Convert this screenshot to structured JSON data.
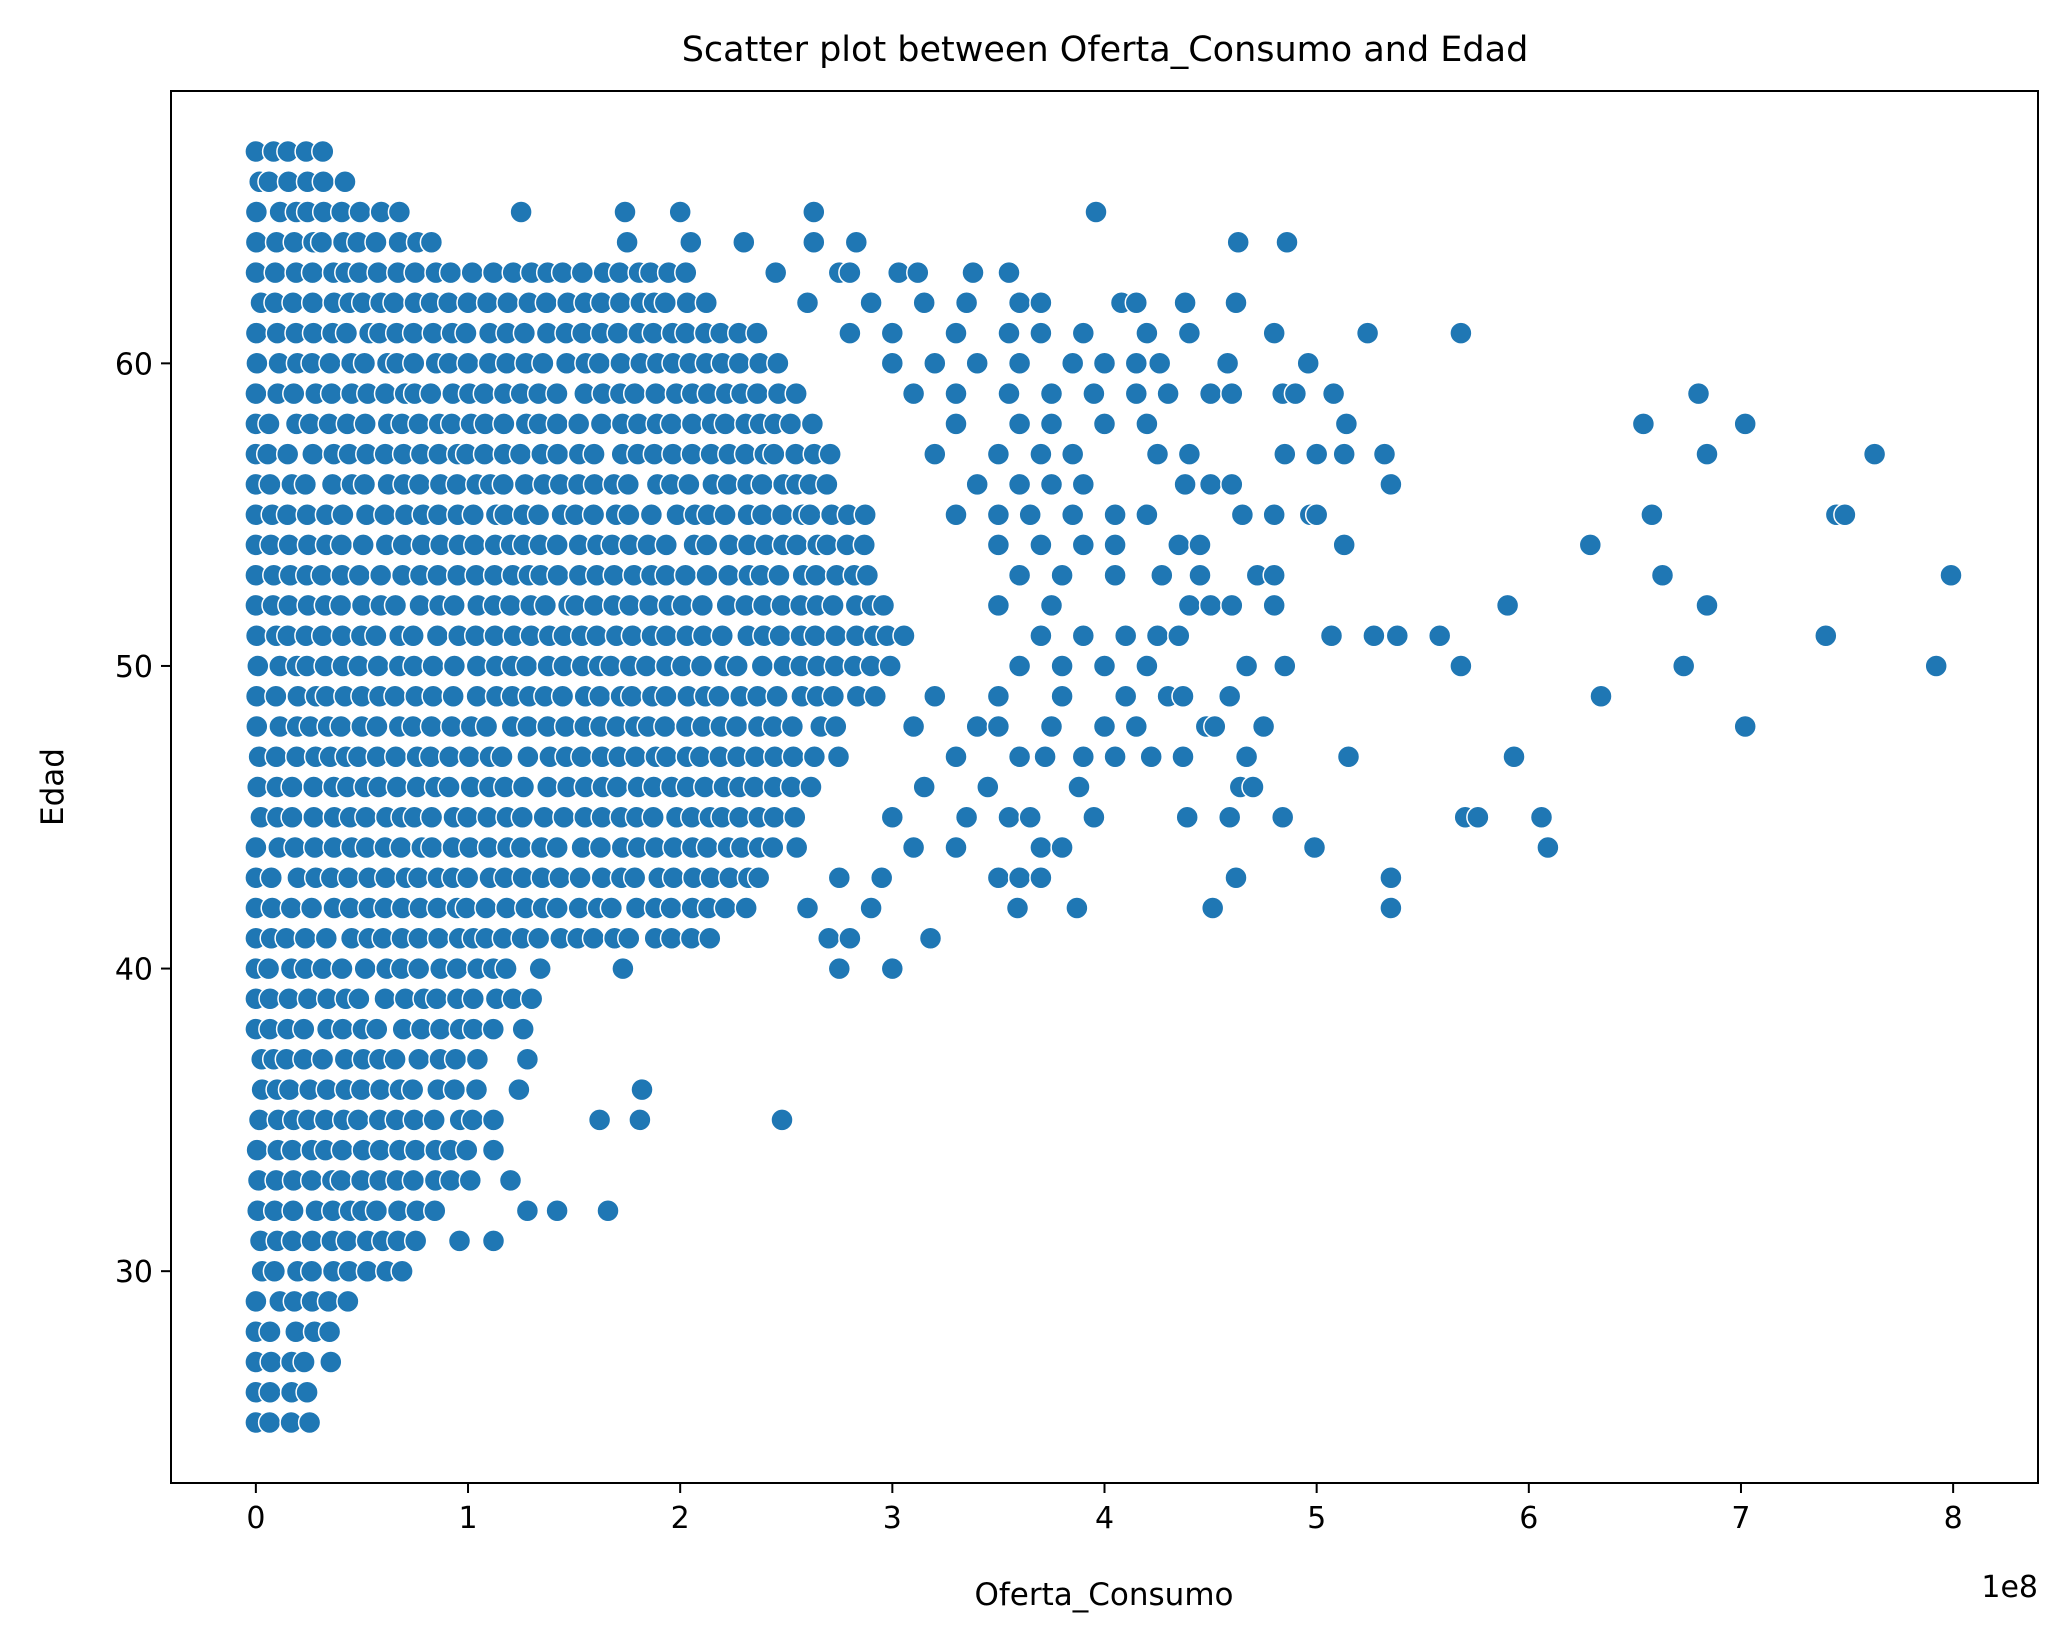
{
  "chart_data": {
    "type": "scatter",
    "title": "Scatter plot between Oferta_Consumo and Edad",
    "xlabel": "Oferta_Consumo",
    "ylabel": "Edad",
    "x_offset_label": "1e8",
    "xlim": [
      -0.4,
      8.4
    ],
    "ylim": [
      23.0,
      69.0
    ],
    "x_ticks": [
      0,
      1,
      2,
      3,
      4,
      5,
      6,
      7,
      8
    ],
    "x_tick_labels": [
      "0",
      "1",
      "2",
      "3",
      "4",
      "5",
      "6",
      "7",
      "8"
    ],
    "y_ticks": [
      30,
      40,
      50,
      60
    ],
    "y_tick_labels": [
      "30",
      "40",
      "50",
      "60"
    ],
    "x_unit_scale": 100000000,
    "grid": false,
    "legend": "none",
    "marker_color": "#1f77b4",
    "marker_edge_color": "#ffffff",
    "dense_band_max_x": [
      {
        "age": 25,
        "max_x": 0.3
      },
      {
        "age": 26,
        "max_x": 0.3
      },
      {
        "age": 27,
        "max_x": 0.34
      },
      {
        "age": 28,
        "max_x": 0.4
      },
      {
        "age": 29,
        "max_x": 0.5
      },
      {
        "age": 30,
        "max_x": 0.72
      },
      {
        "age": 31,
        "max_x": 0.78
      },
      {
        "age": 32,
        "max_x": 0.86
      },
      {
        "age": 33,
        "max_x": 1.02
      },
      {
        "age": 34,
        "max_x": 1.1
      },
      {
        "age": 35,
        "max_x": 1.18
      },
      {
        "age": 36,
        "max_x": 1.06
      },
      {
        "age": 37,
        "max_x": 1.08
      },
      {
        "age": 38,
        "max_x": 1.12
      },
      {
        "age": 39,
        "max_x": 1.22
      },
      {
        "age": 40,
        "max_x": 1.2
      },
      {
        "age": 41,
        "max_x": 2.2
      },
      {
        "age": 42,
        "max_x": 2.3
      },
      {
        "age": 43,
        "max_x": 2.4
      },
      {
        "age": 44,
        "max_x": 2.55
      },
      {
        "age": 45,
        "max_x": 2.6
      },
      {
        "age": 46,
        "max_x": 2.7
      },
      {
        "age": 47,
        "max_x": 2.8
      },
      {
        "age": 48,
        "max_x": 2.8
      },
      {
        "age": 49,
        "max_x": 2.9
      },
      {
        "age": 50,
        "max_x": 3.0
      },
      {
        "age": 51,
        "max_x": 3.1
      },
      {
        "age": 52,
        "max_x": 3.0
      },
      {
        "age": 53,
        "max_x": 2.9
      },
      {
        "age": 54,
        "max_x": 2.9
      },
      {
        "age": 55,
        "max_x": 2.9
      },
      {
        "age": 56,
        "max_x": 2.8
      },
      {
        "age": 57,
        "max_x": 2.8
      },
      {
        "age": 58,
        "max_x": 2.7
      },
      {
        "age": 59,
        "max_x": 2.6
      },
      {
        "age": 60,
        "max_x": 2.5
      },
      {
        "age": 61,
        "max_x": 2.4
      },
      {
        "age": 62,
        "max_x": 2.2
      },
      {
        "age": 63,
        "max_x": 2.1
      },
      {
        "age": 64,
        "max_x": 0.9
      },
      {
        "age": 65,
        "max_x": 0.75
      },
      {
        "age": 66,
        "max_x": 0.45
      },
      {
        "age": 67,
        "max_x": 0.35
      }
    ],
    "points": [
      [
        1.12,
        31
      ],
      [
        0.96,
        31
      ],
      [
        1.28,
        32
      ],
      [
        1.42,
        32
      ],
      [
        1.66,
        32
      ],
      [
        1.2,
        33
      ],
      [
        1.12,
        34
      ],
      [
        1.62,
        35
      ],
      [
        1.81,
        35
      ],
      [
        2.48,
        35
      ],
      [
        1.82,
        36
      ],
      [
        1.24,
        36
      ],
      [
        1.28,
        37
      ],
      [
        1.3,
        39
      ],
      [
        1.26,
        38
      ],
      [
        1.34,
        40
      ],
      [
        1.73,
        40
      ],
      [
        2.75,
        40
      ],
      [
        3.0,
        40
      ],
      [
        2.7,
        41
      ],
      [
        2.8,
        41
      ],
      [
        3.18,
        41
      ],
      [
        2.9,
        42
      ],
      [
        2.6,
        42
      ],
      [
        3.59,
        42
      ],
      [
        3.87,
        42
      ],
      [
        4.51,
        42
      ],
      [
        5.35,
        42
      ],
      [
        2.75,
        43
      ],
      [
        2.95,
        43
      ],
      [
        3.5,
        43
      ],
      [
        3.6,
        43
      ],
      [
        3.7,
        43
      ],
      [
        4.62,
        43
      ],
      [
        5.35,
        43
      ],
      [
        3.1,
        44
      ],
      [
        3.3,
        44
      ],
      [
        3.7,
        44
      ],
      [
        3.8,
        44
      ],
      [
        4.99,
        44
      ],
      [
        6.09,
        44
      ],
      [
        3.0,
        45
      ],
      [
        3.35,
        45
      ],
      [
        3.55,
        45
      ],
      [
        3.65,
        45
      ],
      [
        3.95,
        45
      ],
      [
        4.39,
        45
      ],
      [
        4.59,
        45
      ],
      [
        4.84,
        45
      ],
      [
        5.7,
        45
      ],
      [
        5.76,
        45
      ],
      [
        6.06,
        45
      ],
      [
        3.15,
        46
      ],
      [
        3.45,
        46
      ],
      [
        3.88,
        46
      ],
      [
        4.64,
        46
      ],
      [
        4.7,
        46
      ],
      [
        3.3,
        47
      ],
      [
        3.6,
        47
      ],
      [
        3.72,
        47
      ],
      [
        3.9,
        47
      ],
      [
        4.05,
        47
      ],
      [
        4.22,
        47
      ],
      [
        4.37,
        47
      ],
      [
        4.67,
        47
      ],
      [
        5.15,
        47
      ],
      [
        5.93,
        47
      ],
      [
        3.1,
        48
      ],
      [
        3.4,
        48
      ],
      [
        3.5,
        48
      ],
      [
        3.75,
        48
      ],
      [
        4.0,
        48
      ],
      [
        4.15,
        48
      ],
      [
        4.48,
        48
      ],
      [
        4.52,
        48
      ],
      [
        4.75,
        48
      ],
      [
        7.02,
        48
      ],
      [
        3.2,
        49
      ],
      [
        3.5,
        49
      ],
      [
        3.8,
        49
      ],
      [
        4.1,
        49
      ],
      [
        4.3,
        49
      ],
      [
        4.37,
        49
      ],
      [
        4.59,
        49
      ],
      [
        6.34,
        49
      ],
      [
        3.6,
        50
      ],
      [
        3.8,
        50
      ],
      [
        4.0,
        50
      ],
      [
        4.2,
        50
      ],
      [
        4.67,
        50
      ],
      [
        4.85,
        50
      ],
      [
        5.68,
        50
      ],
      [
        6.73,
        50
      ],
      [
        7.92,
        50
      ],
      [
        3.7,
        51
      ],
      [
        3.9,
        51
      ],
      [
        4.1,
        51
      ],
      [
        4.25,
        51
      ],
      [
        4.35,
        51
      ],
      [
        5.07,
        51
      ],
      [
        5.27,
        51
      ],
      [
        5.38,
        51
      ],
      [
        5.58,
        51
      ],
      [
        7.4,
        51
      ],
      [
        3.5,
        52
      ],
      [
        3.75,
        52
      ],
      [
        4.4,
        52
      ],
      [
        4.5,
        52
      ],
      [
        4.6,
        52
      ],
      [
        4.8,
        52
      ],
      [
        5.9,
        52
      ],
      [
        6.84,
        52
      ],
      [
        3.6,
        53
      ],
      [
        3.8,
        53
      ],
      [
        4.05,
        53
      ],
      [
        4.27,
        53
      ],
      [
        4.45,
        53
      ],
      [
        4.72,
        53
      ],
      [
        4.8,
        53
      ],
      [
        6.63,
        53
      ],
      [
        7.99,
        53
      ],
      [
        3.5,
        54
      ],
      [
        3.7,
        54
      ],
      [
        3.9,
        54
      ],
      [
        4.05,
        54
      ],
      [
        4.35,
        54
      ],
      [
        4.45,
        54
      ],
      [
        5.13,
        54
      ],
      [
        6.29,
        54
      ],
      [
        3.3,
        55
      ],
      [
        3.5,
        55
      ],
      [
        3.65,
        55
      ],
      [
        3.85,
        55
      ],
      [
        4.05,
        55
      ],
      [
        4.2,
        55
      ],
      [
        4.65,
        55
      ],
      [
        4.8,
        55
      ],
      [
        4.97,
        55
      ],
      [
        5.0,
        55
      ],
      [
        6.58,
        55
      ],
      [
        7.45,
        55
      ],
      [
        7.49,
        55
      ],
      [
        3.4,
        56
      ],
      [
        3.6,
        56
      ],
      [
        3.75,
        56
      ],
      [
        3.9,
        56
      ],
      [
        4.38,
        56
      ],
      [
        4.5,
        56
      ],
      [
        4.6,
        56
      ],
      [
        5.35,
        56
      ],
      [
        3.2,
        57
      ],
      [
        3.5,
        57
      ],
      [
        3.7,
        57
      ],
      [
        3.85,
        57
      ],
      [
        4.25,
        57
      ],
      [
        4.4,
        57
      ],
      [
        4.85,
        57
      ],
      [
        5.0,
        57
      ],
      [
        5.13,
        57
      ],
      [
        5.32,
        57
      ],
      [
        6.84,
        57
      ],
      [
        7.63,
        57
      ],
      [
        3.3,
        58
      ],
      [
        3.6,
        58
      ],
      [
        3.75,
        58
      ],
      [
        4.0,
        58
      ],
      [
        4.2,
        58
      ],
      [
        5.14,
        58
      ],
      [
        6.54,
        58
      ],
      [
        7.02,
        58
      ],
      [
        3.1,
        59
      ],
      [
        3.3,
        59
      ],
      [
        3.55,
        59
      ],
      [
        3.75,
        59
      ],
      [
        3.95,
        59
      ],
      [
        4.15,
        59
      ],
      [
        4.3,
        59
      ],
      [
        4.5,
        59
      ],
      [
        4.6,
        59
      ],
      [
        4.84,
        59
      ],
      [
        4.9,
        59
      ],
      [
        5.08,
        59
      ],
      [
        6.8,
        59
      ],
      [
        3.0,
        60
      ],
      [
        3.2,
        60
      ],
      [
        3.4,
        60
      ],
      [
        3.6,
        60
      ],
      [
        3.85,
        60
      ],
      [
        4.0,
        60
      ],
      [
        4.15,
        60
      ],
      [
        4.26,
        60
      ],
      [
        4.58,
        60
      ],
      [
        4.96,
        60
      ],
      [
        2.8,
        61
      ],
      [
        3.0,
        61
      ],
      [
        3.3,
        61
      ],
      [
        3.55,
        61
      ],
      [
        3.7,
        61
      ],
      [
        3.9,
        61
      ],
      [
        4.2,
        61
      ],
      [
        4.4,
        61
      ],
      [
        4.8,
        61
      ],
      [
        5.24,
        61
      ],
      [
        5.68,
        61
      ],
      [
        2.6,
        62
      ],
      [
        2.9,
        62
      ],
      [
        3.15,
        62
      ],
      [
        3.35,
        62
      ],
      [
        3.6,
        62
      ],
      [
        3.7,
        62
      ],
      [
        4.08,
        62
      ],
      [
        4.15,
        62
      ],
      [
        4.38,
        62
      ],
      [
        4.62,
        62
      ],
      [
        2.45,
        63
      ],
      [
        2.75,
        63
      ],
      [
        2.8,
        63
      ],
      [
        3.03,
        63
      ],
      [
        3.12,
        63
      ],
      [
        3.38,
        63
      ],
      [
        3.55,
        63
      ],
      [
        1.75,
        64
      ],
      [
        2.05,
        64
      ],
      [
        2.3,
        64
      ],
      [
        2.63,
        64
      ],
      [
        2.83,
        64
      ],
      [
        4.63,
        64
      ],
      [
        4.86,
        64
      ],
      [
        1.74,
        65
      ],
      [
        2.0,
        65
      ],
      [
        2.63,
        65
      ],
      [
        3.96,
        65
      ],
      [
        1.25,
        65
      ]
    ]
  }
}
